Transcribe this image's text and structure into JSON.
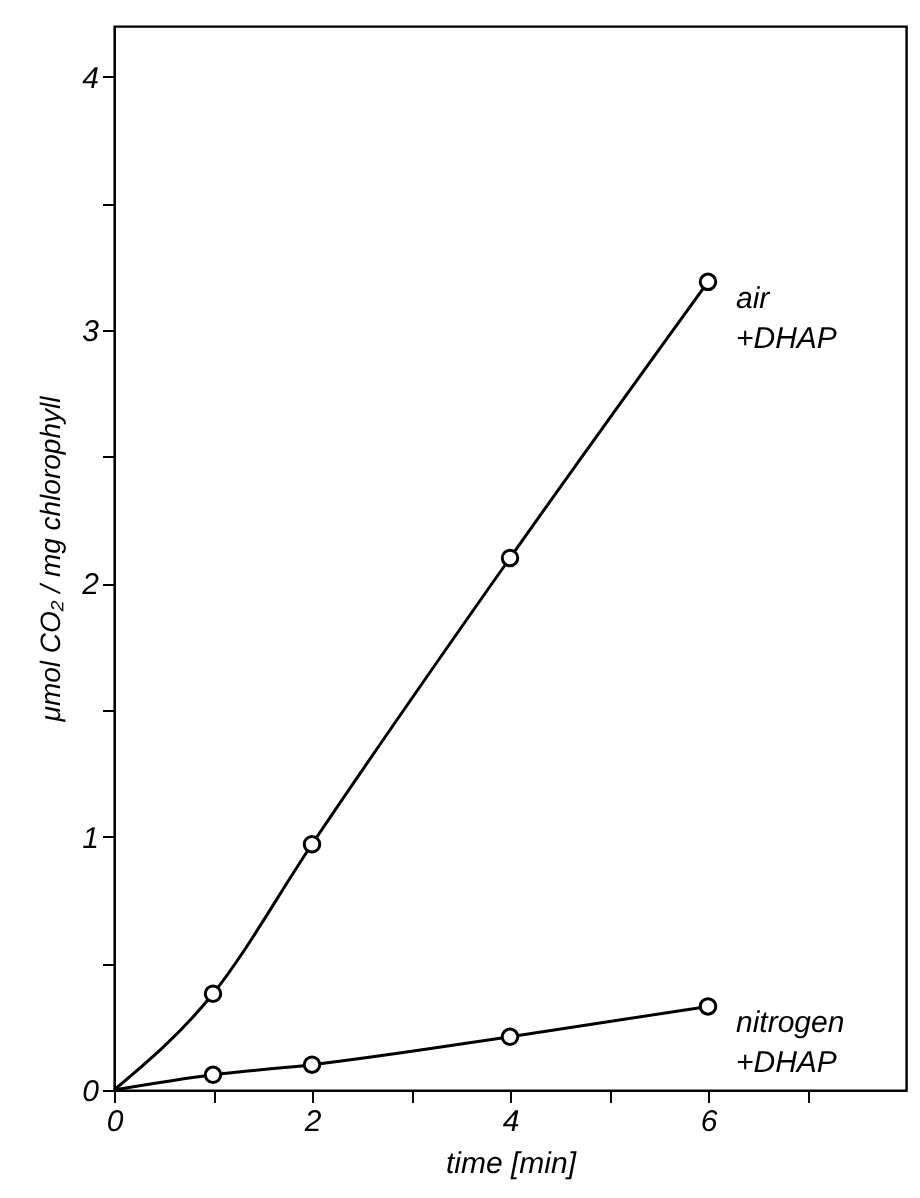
{
  "chart_data": {
    "type": "line",
    "xlabel": "time [min]",
    "ylabel": "μmol CO₂ / mg chlorophyll",
    "xlim": [
      0,
      8
    ],
    "ylim": [
      0,
      4.2
    ],
    "xticks": [
      0,
      {
        "value": 1,
        "label": null
      },
      2,
      {
        "value": 3,
        "label": null
      },
      4,
      {
        "value": 5,
        "label": null
      },
      6,
      {
        "value": 7,
        "label": null
      }
    ],
    "yticks": [
      0,
      {
        "value": 0.5,
        "label": null
      },
      1,
      {
        "value": 1.5,
        "label": null
      },
      2,
      {
        "value": 2.5,
        "label": null
      },
      3,
      {
        "value": 3.5,
        "label": null
      },
      4
    ],
    "grid": false,
    "series": [
      {
        "name": "air +DHAP",
        "marker": "none",
        "color": "#000000",
        "x": [
          0,
          1,
          2,
          4,
          6
        ],
        "values": [
          0,
          0.38,
          0.97,
          2.1,
          3.19
        ]
      },
      {
        "name": "nitrogen +DHAP",
        "marker": "none",
        "color": "#000000",
        "x": [
          0,
          1,
          2,
          4,
          6
        ],
        "values": [
          0,
          0.06,
          0.1,
          0.21,
          0.33
        ]
      },
      {
        "type": "scatter",
        "marker": "circle",
        "color": "#000000",
        "x": [
          1,
          2,
          4,
          6
        ],
        "values": [
          0.38,
          0.97,
          2.1,
          3.19
        ]
      },
      {
        "type": "scatter",
        "marker": "circle",
        "color": "#000000",
        "x": [
          1,
          2,
          4,
          6
        ],
        "values": [
          0.06,
          0.1,
          0.21,
          0.33
        ]
      }
    ]
  }
}
